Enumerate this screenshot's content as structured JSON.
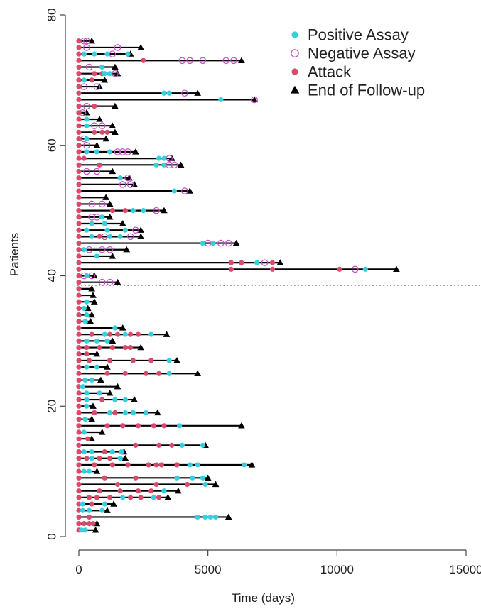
{
  "chart_data": {
    "type": "scatter",
    "xlabel": "Time (days)",
    "ylabel": "Patients",
    "xlim": [
      0,
      15000
    ],
    "ylim": [
      0,
      80
    ],
    "x_ticks": [
      0,
      5000,
      10000,
      15000
    ],
    "y_ticks": [
      0,
      20,
      40,
      60,
      80
    ],
    "x_tick_labels": [
      "0",
      "5000",
      "10000",
      "15000"
    ],
    "y_tick_labels": [
      "0",
      "20",
      "40",
      "60",
      "80"
    ],
    "reference_line_y": 38.5,
    "legend_position": "top-right",
    "colors": {
      "positive": "#35CFE0",
      "negative": "#C84CC8",
      "attack": "#D94B6A",
      "end": "#000000",
      "line": "#000000",
      "reference": "#999999"
    },
    "legend": [
      {
        "label": "Positive Assay",
        "marker": "positive"
      },
      {
        "label": "Negative Assay",
        "marker": "negative"
      },
      {
        "label": "Attack",
        "marker": "attack"
      },
      {
        "label": "End of Follow-up",
        "marker": "end"
      }
    ],
    "patients": [
      {
        "id": 1,
        "end": 650,
        "attacks": [
          0
        ],
        "positive": [
          100,
          250
        ],
        "negative": []
      },
      {
        "id": 2,
        "end": 700,
        "attacks": [
          0,
          200,
          400,
          550
        ],
        "positive": [],
        "negative": []
      },
      {
        "id": 3,
        "end": 5800,
        "attacks": [
          0,
          400
        ],
        "positive": [
          4600,
          4900,
          5100,
          5300
        ],
        "negative": []
      },
      {
        "id": 4,
        "end": 1100,
        "attacks": [
          0
        ],
        "positive": [
          150,
          400,
          900
        ],
        "negative": []
      },
      {
        "id": 5,
        "end": 1350,
        "attacks": [
          0,
          500
        ],
        "positive": [
          150,
          1000
        ],
        "negative": []
      },
      {
        "id": 6,
        "end": 3450,
        "attacks": [
          0,
          400,
          700,
          1200,
          2000,
          2400,
          3100
        ],
        "positive": [
          1700,
          2900
        ],
        "negative": []
      },
      {
        "id": 7,
        "end": 3850,
        "attacks": [
          0,
          800,
          1600,
          2300,
          2800
        ],
        "positive": [
          3300
        ],
        "negative": []
      },
      {
        "id": 8,
        "end": 5300,
        "attacks": [
          0,
          1500,
          3000,
          4200
        ],
        "positive": [
          4900
        ],
        "negative": []
      },
      {
        "id": 9,
        "end": 5000,
        "attacks": [
          0,
          1000,
          2200
        ],
        "positive": [
          3800,
          4400,
          4800
        ],
        "negative": []
      },
      {
        "id": 10,
        "end": 700,
        "attacks": [
          0
        ],
        "positive": [
          200,
          400
        ],
        "negative": []
      },
      {
        "id": 11,
        "end": 6700,
        "attacks": [
          0,
          600,
          1300,
          1900,
          2700,
          3000,
          3200,
          3800
        ],
        "positive": [
          4300,
          4600,
          6400
        ],
        "negative": []
      },
      {
        "id": 12,
        "end": 1800,
        "attacks": [
          0,
          300,
          800,
          1200
        ],
        "positive": [
          500,
          1600
        ],
        "negative": []
      },
      {
        "id": 13,
        "end": 1750,
        "attacks": [
          0,
          1000
        ],
        "positive": [
          200,
          500,
          1300,
          1650
        ],
        "negative": []
      },
      {
        "id": 14,
        "end": 4900,
        "attacks": [
          0,
          2200,
          3100,
          3600
        ],
        "positive": [
          4000,
          4800
        ],
        "negative": []
      },
      {
        "id": 15,
        "end": 500,
        "attacks": [
          0,
          350
        ],
        "positive": [],
        "negative": []
      },
      {
        "id": 16,
        "end": 900,
        "attacks": [
          0
        ],
        "positive": [
          200
        ],
        "negative": []
      },
      {
        "id": 17,
        "end": 6300,
        "attacks": [
          0,
          1100,
          1700,
          2300,
          2900,
          3300
        ],
        "positive": [
          3900
        ],
        "negative": []
      },
      {
        "id": 18,
        "end": 500,
        "attacks": [
          0
        ],
        "positive": [
          250
        ],
        "negative": []
      },
      {
        "id": 19,
        "end": 3050,
        "attacks": [
          0,
          600,
          1400
        ],
        "positive": [
          1200,
          1800,
          2100,
          2600
        ],
        "negative": []
      },
      {
        "id": 20,
        "end": 550,
        "attacks": [
          0
        ],
        "positive": [
          300
        ],
        "negative": []
      },
      {
        "id": 21,
        "end": 2150,
        "attacks": [
          0,
          900
        ],
        "positive": [
          300,
          1400,
          1800
        ],
        "negative": []
      },
      {
        "id": 22,
        "end": 1200,
        "attacks": [
          0
        ],
        "positive": [
          300,
          800
        ],
        "negative": []
      },
      {
        "id": 23,
        "end": 1500,
        "attacks": [
          0
        ],
        "positive": [
          150
        ],
        "negative": []
      },
      {
        "id": 24,
        "end": 850,
        "attacks": [
          0
        ],
        "positive": [
          250,
          500
        ],
        "negative": []
      },
      {
        "id": 25,
        "end": 4600,
        "attacks": [
          0,
          1100,
          1800,
          2600,
          3100
        ],
        "positive": [
          3500
        ],
        "negative": []
      },
      {
        "id": 26,
        "end": 1100,
        "attacks": [
          0
        ],
        "positive": [
          300,
          700
        ],
        "negative": []
      },
      {
        "id": 27,
        "end": 3800,
        "attacks": [
          0,
          400,
          1200,
          2100,
          2800
        ],
        "positive": [
          3500
        ],
        "negative": []
      },
      {
        "id": 28,
        "end": 700,
        "attacks": [
          0,
          300
        ],
        "positive": [],
        "negative": []
      },
      {
        "id": 29,
        "end": 2400,
        "attacks": [
          0,
          300,
          800,
          1300,
          1800,
          2000
        ],
        "positive": [],
        "negative": []
      },
      {
        "id": 30,
        "end": 1300,
        "attacks": [
          0
        ],
        "positive": [
          300,
          700,
          1100
        ],
        "negative": []
      },
      {
        "id": 31,
        "end": 3400,
        "attacks": [
          0,
          500,
          1200,
          1500,
          2000,
          2300
        ],
        "positive": [
          1000,
          1800,
          2800
        ],
        "negative": []
      },
      {
        "id": 32,
        "end": 1700,
        "attacks": [
          0
        ],
        "positive": [
          1400
        ],
        "negative": []
      },
      {
        "id": 33,
        "end": 450,
        "attacks": [
          0
        ],
        "positive": [
          250
        ],
        "negative": []
      },
      {
        "id": 34,
        "end": 500,
        "attacks": [
          0
        ],
        "positive": [
          300
        ],
        "negative": []
      },
      {
        "id": 35,
        "end": 350,
        "attacks": [
          0
        ],
        "positive": [
          200
        ],
        "negative": []
      },
      {
        "id": 36,
        "end": 600,
        "attacks": [
          0
        ],
        "positive": [
          300
        ],
        "negative": []
      },
      {
        "id": 37,
        "end": 550,
        "attacks": [
          0
        ],
        "positive": [],
        "negative": []
      },
      {
        "id": 38,
        "end": 500,
        "attacks": [
          0
        ],
        "positive": [],
        "negative": []
      },
      {
        "id": 39,
        "end": 1500,
        "attacks": [
          0
        ],
        "positive": [],
        "negative": [
          900,
          1200
        ]
      },
      {
        "id": 40,
        "end": 600,
        "attacks": [
          0
        ],
        "positive": [
          300
        ],
        "negative": [
          200,
          500
        ]
      },
      {
        "id": 41,
        "end": 12300,
        "attacks": [
          0,
          5900,
          7500,
          10100
        ],
        "positive": [
          11100
        ],
        "negative": [
          10700
        ]
      },
      {
        "id": 42,
        "end": 7800,
        "attacks": [
          0,
          5900,
          6300,
          7500
        ],
        "positive": [
          6900
        ],
        "negative": [
          7200
        ]
      },
      {
        "id": 43,
        "end": 1300,
        "attacks": [
          0
        ],
        "positive": [
          700
        ],
        "negative": []
      },
      {
        "id": 44,
        "end": 1850,
        "attacks": [
          0
        ],
        "positive": [
          200
        ],
        "negative": [
          400,
          900,
          1200
        ]
      },
      {
        "id": 45,
        "end": 6100,
        "attacks": [
          0
        ],
        "positive": [
          4800,
          5200
        ],
        "negative": [
          5000,
          5500,
          5800
        ]
      },
      {
        "id": 46,
        "end": 2400,
        "attacks": [
          0,
          800
        ],
        "positive": [
          500,
          1200,
          1600
        ],
        "negative": [
          1000,
          2000
        ]
      },
      {
        "id": 47,
        "end": 2400,
        "attacks": [
          0
        ],
        "positive": [
          300,
          1100,
          1800
        ],
        "negative": [
          2200
        ]
      },
      {
        "id": 48,
        "end": 1700,
        "attacks": [
          0
        ],
        "positive": [
          500,
          1000
        ],
        "negative": []
      },
      {
        "id": 49,
        "end": 1200,
        "attacks": [
          0
        ],
        "positive": [
          900
        ],
        "negative": [
          500,
          700
        ]
      },
      {
        "id": 50,
        "end": 3300,
        "attacks": [
          0,
          1300,
          1800
        ],
        "positive": [
          2100,
          2500
        ],
        "negative": [
          3000
        ]
      },
      {
        "id": 51,
        "end": 1200,
        "attacks": [
          0
        ],
        "positive": [],
        "negative": [
          500,
          900
        ]
      },
      {
        "id": 52,
        "end": 1050,
        "attacks": [
          0
        ],
        "positive": [],
        "negative": []
      },
      {
        "id": 53,
        "end": 4300,
        "attacks": [
          0
        ],
        "positive": [
          3700
        ],
        "negative": [
          4100
        ]
      },
      {
        "id": 54,
        "end": 2150,
        "attacks": [
          0
        ],
        "positive": [],
        "negative": [
          1700,
          2000
        ]
      },
      {
        "id": 55,
        "end": 1950,
        "attacks": [
          0
        ],
        "positive": [
          1600
        ],
        "negative": [
          1900
        ]
      },
      {
        "id": 56,
        "end": 1300,
        "attacks": [
          0
        ],
        "positive": [],
        "negative": [
          300,
          700
        ]
      },
      {
        "id": 57,
        "end": 3950,
        "attacks": [
          0,
          800
        ],
        "positive": [
          3000,
          3300
        ],
        "negative": [
          3500,
          3700
        ]
      },
      {
        "id": 58,
        "end": 3600,
        "attacks": [
          0,
          200
        ],
        "positive": [
          3100,
          3300
        ],
        "negative": [
          3500
        ]
      },
      {
        "id": 59,
        "end": 2200,
        "attacks": [
          0
        ],
        "positive": [
          300,
          700,
          1200
        ],
        "negative": [
          1500,
          1700,
          1900
        ]
      },
      {
        "id": 60,
        "end": 700,
        "attacks": [
          0
        ],
        "positive": [],
        "negative": [
          300
        ]
      },
      {
        "id": 61,
        "end": 1050,
        "attacks": [
          0
        ],
        "positive": [
          300
        ],
        "negative": [
          200
        ]
      },
      {
        "id": 62,
        "end": 1400,
        "attacks": [
          0,
          600,
          900,
          1100
        ],
        "positive": [],
        "negative": []
      },
      {
        "id": 63,
        "end": 1300,
        "attacks": [
          0
        ],
        "positive": [
          300
        ],
        "negative": [
          600,
          900
        ]
      },
      {
        "id": 64,
        "end": 800,
        "attacks": [
          0
        ],
        "positive": [
          300
        ],
        "negative": []
      },
      {
        "id": 65,
        "end": 300,
        "attacks": [
          0
        ],
        "positive": [],
        "negative": [
          150
        ]
      },
      {
        "id": 66,
        "end": 1400,
        "attacks": [
          0,
          600
        ],
        "positive": [],
        "negative": [
          300
        ]
      },
      {
        "id": 67,
        "end": 6800,
        "attacks": [
          0
        ],
        "positive": [
          5500
        ],
        "negative": [
          6800
        ]
      },
      {
        "id": 68,
        "end": 4600,
        "attacks": [
          0
        ],
        "positive": [
          3300,
          3500
        ],
        "negative": [
          4100
        ]
      },
      {
        "id": 69,
        "end": 800,
        "attacks": [
          0
        ],
        "positive": [],
        "negative": [
          200,
          700
        ]
      },
      {
        "id": 70,
        "end": 1000,
        "attacks": [
          0,
          500
        ],
        "positive": [
          200
        ],
        "negative": []
      },
      {
        "id": 71,
        "end": 1500,
        "attacks": [
          0,
          600,
          900
        ],
        "positive": [
          1000,
          1200
        ],
        "negative": [
          1400
        ]
      },
      {
        "id": 72,
        "end": 1400,
        "attacks": [
          0
        ],
        "positive": [
          900
        ],
        "negative": [
          400
        ]
      },
      {
        "id": 73,
        "end": 6300,
        "attacks": [
          0,
          2500
        ],
        "positive": [],
        "negative": [
          4000,
          4300,
          4800,
          5700,
          6000
        ]
      },
      {
        "id": 74,
        "end": 2000,
        "attacks": [
          0
        ],
        "positive": [
          200,
          600,
          1100,
          1900
        ],
        "negative": [
          1300
        ]
      },
      {
        "id": 75,
        "end": 2400,
        "attacks": [
          0
        ],
        "positive": [],
        "negative": [
          300,
          1500
        ]
      },
      {
        "id": 76,
        "end": 500,
        "attacks": [
          0
        ],
        "positive": [],
        "negative": [
          200,
          300
        ]
      }
    ]
  }
}
